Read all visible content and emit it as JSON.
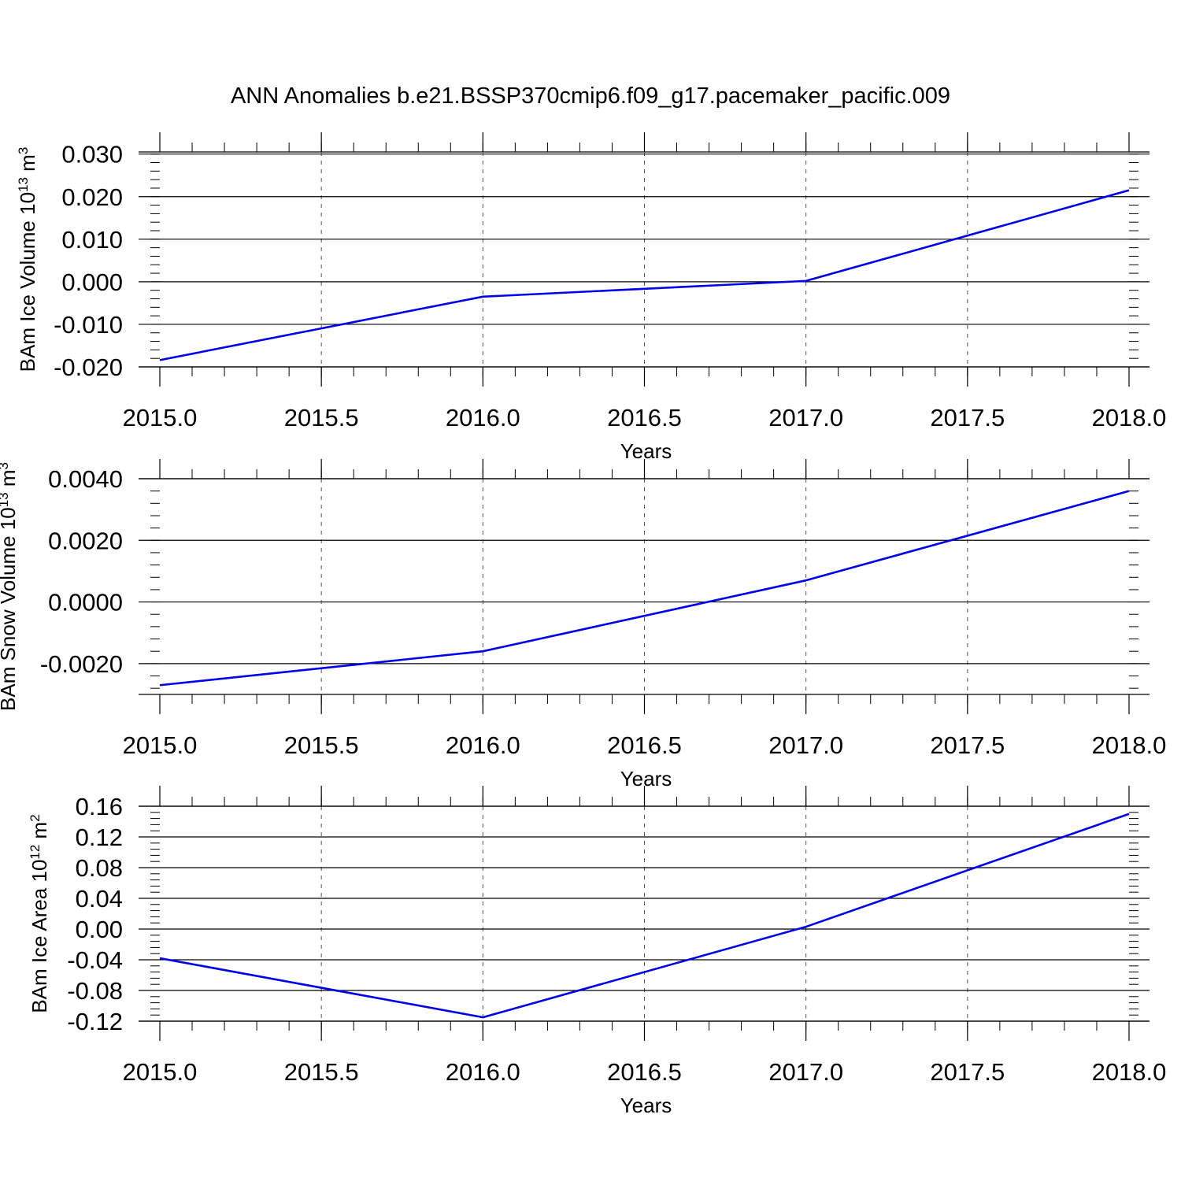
{
  "figure_title": "ANN Anomalies b.e21.BSSP370cmip6.f09_g17.pacemaker_pacific.009",
  "colors": {
    "line": "#0000ee",
    "axis": "#000000",
    "grid": "#555555"
  },
  "chart_data": [
    {
      "type": "line",
      "xlabel": "Years",
      "ylabel": {
        "text": "BAm Ice Volume 10",
        "exp": "13",
        "unit": " m",
        "unit_exp": "3"
      },
      "x": [
        2015.0,
        2016.0,
        2017.0,
        2018.0
      ],
      "series": [
        {
          "values": [
            -0.0184,
            -0.0035,
            0.0002,
            0.0215
          ]
        }
      ],
      "xlim": [
        2015.0,
        2018.0
      ],
      "ylim": [
        -0.02,
        0.0305
      ],
      "xticks": [
        2015.0,
        2015.5,
        2016.0,
        2016.5,
        2017.0,
        2017.5,
        2018.0
      ],
      "xtick_labels": [
        "2015.0",
        "2015.5",
        "2016.0",
        "2016.5",
        "2017.0",
        "2017.5",
        "2018.0"
      ],
      "yticks": [
        -0.02,
        -0.01,
        0.0,
        0.01,
        0.02,
        0.03
      ],
      "ytick_labels": [
        "-0.020",
        "-0.010",
        "0.000",
        "0.010",
        "0.020",
        "0.030"
      ],
      "yminor_step": 0.002,
      "grid": "vertical dashed"
    },
    {
      "type": "line",
      "xlabel": "Years",
      "ylabel": {
        "text": "BAm Snow Volume 10",
        "exp": "13",
        "unit": " m",
        "unit_exp": "3"
      },
      "x": [
        2015.0,
        2016.0,
        2017.0,
        2018.0
      ],
      "series": [
        {
          "values": [
            -0.0027,
            -0.0016,
            0.0007,
            0.0036
          ]
        }
      ],
      "xlim": [
        2015.0,
        2018.0
      ],
      "ylim": [
        -0.003,
        0.004
      ],
      "xticks": [
        2015.0,
        2015.5,
        2016.0,
        2016.5,
        2017.0,
        2017.5,
        2018.0
      ],
      "xtick_labels": [
        "2015.0",
        "2015.5",
        "2016.0",
        "2016.5",
        "2017.0",
        "2017.5",
        "2018.0"
      ],
      "yticks": [
        -0.002,
        0.0,
        0.002,
        0.004
      ],
      "ytick_labels": [
        "-0.0020",
        "0.0000",
        "0.0020",
        "0.0040"
      ],
      "yminor_step": 0.0004,
      "grid": "vertical dashed"
    },
    {
      "type": "line",
      "xlabel": "Years",
      "ylabel": {
        "text": "BAm Ice Area 10",
        "exp": "12",
        "unit": " m",
        "unit_exp": "2"
      },
      "x": [
        2015.0,
        2016.0,
        2017.0,
        2018.0
      ],
      "series": [
        {
          "values": [
            -0.038,
            -0.115,
            0.003,
            0.15
          ]
        }
      ],
      "xlim": [
        2015.0,
        2018.0
      ],
      "ylim": [
        -0.12,
        0.16
      ],
      "xticks": [
        2015.0,
        2015.5,
        2016.0,
        2016.5,
        2017.0,
        2017.5,
        2018.0
      ],
      "xtick_labels": [
        "2015.0",
        "2015.5",
        "2016.0",
        "2016.5",
        "2017.0",
        "2017.5",
        "2018.0"
      ],
      "yticks": [
        -0.12,
        -0.08,
        -0.04,
        0.0,
        0.04,
        0.08,
        0.12,
        0.16
      ],
      "ytick_labels": [
        "-0.12",
        "-0.08",
        "-0.04",
        "0.00",
        "0.04",
        "0.08",
        "0.12",
        "0.16"
      ],
      "yminor_step": 0.008,
      "grid": "vertical dashed"
    }
  ]
}
